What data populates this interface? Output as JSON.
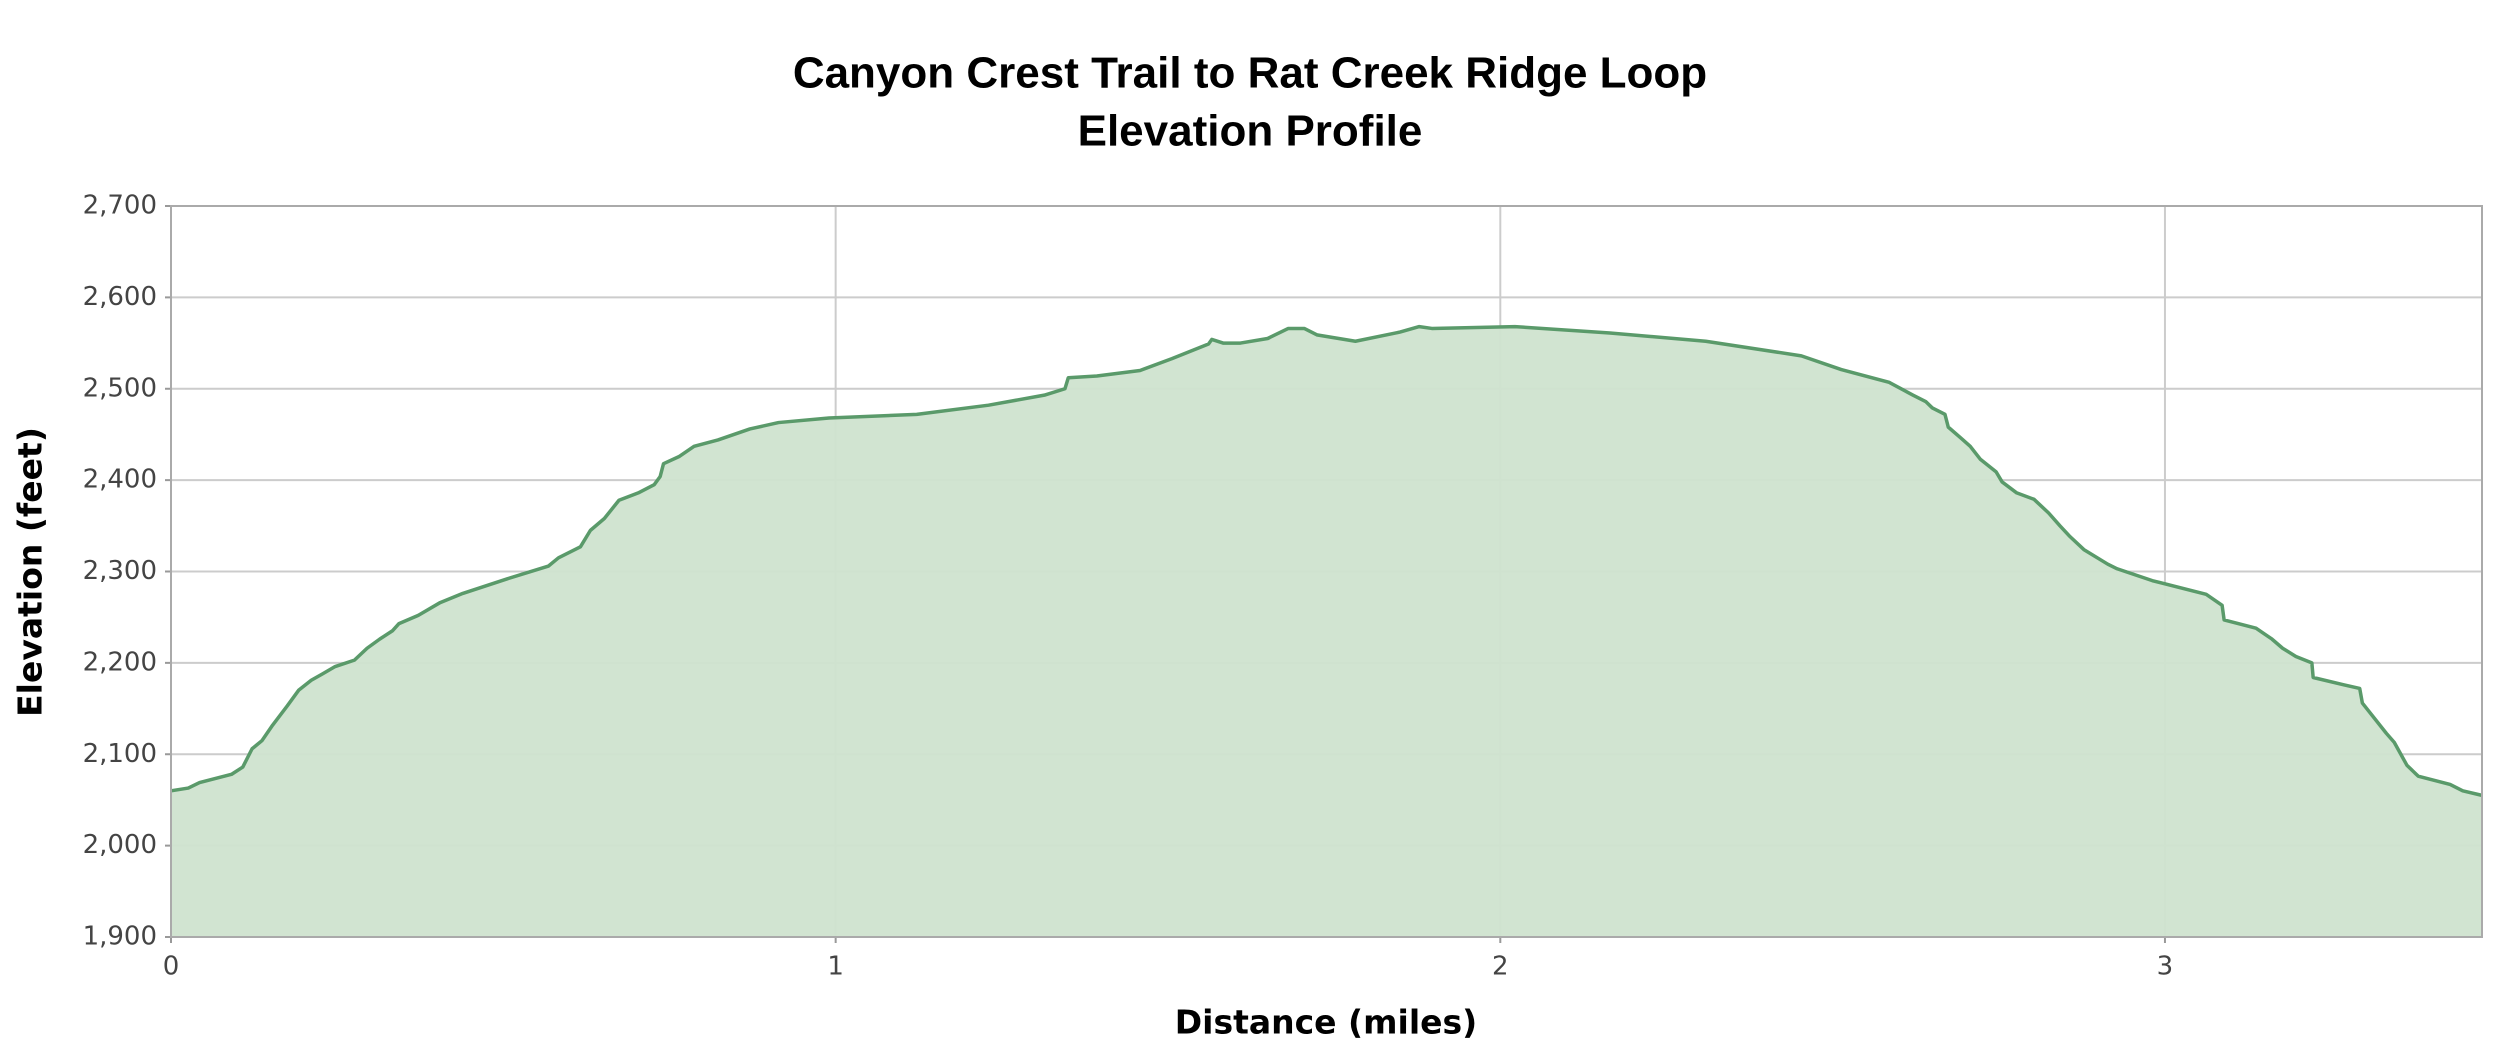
{
  "chart_data": {
    "type": "area",
    "title": "Canyon Crest Trail to Rat Creek Ridge Loop",
    "subtitle": "Elevation Profile",
    "x_label": "Distance (miles)",
    "y_label": "Elevation (feet)",
    "x": [
      0,
      0.026,
      0.043,
      0.091,
      0.108,
      0.122,
      0.137,
      0.153,
      0.175,
      0.192,
      0.211,
      0.228,
      0.247,
      0.276,
      0.295,
      0.314,
      0.333,
      0.343,
      0.372,
      0.405,
      0.439,
      0.506,
      0.568,
      0.583,
      0.616,
      0.631,
      0.652,
      0.674,
      0.703,
      0.727,
      0.736,
      0.741,
      0.765,
      0.787,
      0.823,
      0.871,
      0.914,
      0.99,
      1.122,
      1.23,
      1.314,
      1.345,
      1.35,
      1.393,
      1.458,
      1.506,
      1.561,
      1.566,
      1.583,
      1.609,
      1.65,
      1.681,
      1.705,
      1.724,
      1.782,
      1.849,
      1.878,
      1.897,
      2.022,
      2.165,
      2.309,
      2.453,
      2.513,
      2.585,
      2.621,
      2.64,
      2.65,
      2.669,
      2.674,
      2.693,
      2.707,
      2.722,
      2.746,
      2.755,
      2.777,
      2.803,
      2.825,
      2.842,
      2.856,
      2.878,
      2.914,
      2.928,
      2.981,
      3.062,
      3.086,
      3.089,
      3.137,
      3.161,
      3.177,
      3.197,
      3.221,
      3.223,
      3.269,
      3.293,
      3.297,
      3.333,
      3.345,
      3.364,
      3.381,
      3.429,
      3.448,
      3.477
    ],
    "values": [
      2060,
      2063,
      2069,
      2078,
      2086,
      2106,
      2115,
      2132,
      2153,
      2170,
      2181,
      2188,
      2196,
      2203,
      2216,
      2226,
      2235,
      2243,
      2252,
      2266,
      2276,
      2292,
      2306,
      2315,
      2327,
      2345,
      2358,
      2378,
      2386,
      2395,
      2404,
      2418,
      2426,
      2437,
      2444,
      2456,
      2463,
      2468,
      2472,
      2482,
      2493,
      2500,
      2512,
      2514,
      2520,
      2533,
      2549,
      2554,
      2550,
      2550,
      2555,
      2566,
      2566,
      2559,
      2552,
      2562,
      2568,
      2566,
      2568,
      2561,
      2552,
      2536,
      2521,
      2507,
      2493,
      2486,
      2479,
      2472,
      2458,
      2446,
      2437,
      2423,
      2409,
      2398,
      2386,
      2379,
      2364,
      2350,
      2339,
      2324,
      2308,
      2303,
      2290,
      2275,
      2263,
      2247,
      2238,
      2226,
      2216,
      2207,
      2200,
      2184,
      2176,
      2172,
      2156,
      2123,
      2113,
      2088,
      2076,
      2067,
      2060,
      2055
    ],
    "color": "#5a9a6a",
    "fill_color": "#cfe3cf",
    "xlim": [
      0,
      3.477
    ],
    "ylim": [
      1900,
      2700
    ],
    "xticks": [
      0,
      1,
      2,
      3
    ],
    "yticks": [
      {
        "value": 1900,
        "label": "1,900"
      },
      {
        "value": 2000,
        "label": "2,000"
      },
      {
        "value": 2100,
        "label": "2,100"
      },
      {
        "value": 2200,
        "label": "2,200"
      },
      {
        "value": 2300,
        "label": "2,300"
      },
      {
        "value": 2400,
        "label": "2,400"
      },
      {
        "value": 2500,
        "label": "2,500"
      },
      {
        "value": 2600,
        "label": "2,600"
      },
      {
        "value": 2700,
        "label": "2,700"
      }
    ],
    "grid": true
  }
}
